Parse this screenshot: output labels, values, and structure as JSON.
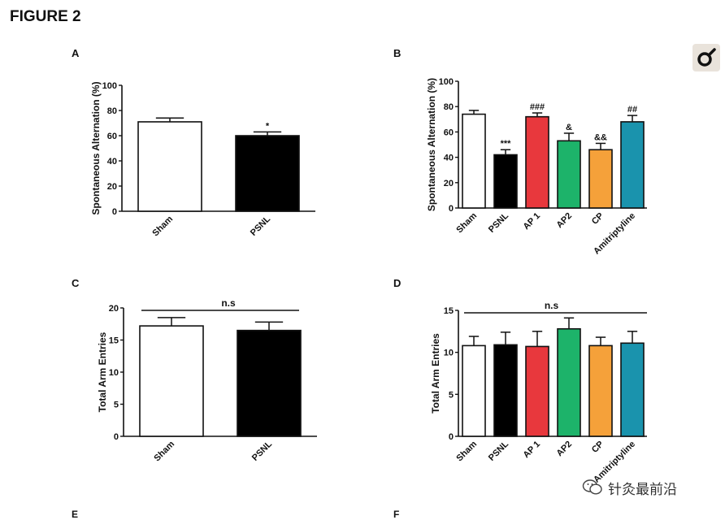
{
  "figure_title": "FIGURE 2",
  "watermark_text": "针灸最前沿",
  "bottom_letters": [
    "E",
    "F"
  ],
  "chart_data": [
    {
      "panel": "A",
      "type": "bar",
      "ylabel": "Spontaneous Alternation (%)",
      "ylim": [
        0,
        100
      ],
      "yticks": [
        0,
        20,
        40,
        60,
        80,
        100
      ],
      "categories": [
        "Sham",
        "PSNL"
      ],
      "values": [
        71,
        60
      ],
      "errors": [
        3,
        3
      ],
      "colors": [
        "#ffffff",
        "#000000"
      ],
      "annotations": [
        "",
        "*"
      ]
    },
    {
      "panel": "B",
      "type": "bar",
      "ylabel": "Spontaneous Alternation (%)",
      "ylim": [
        0,
        100
      ],
      "yticks": [
        0,
        20,
        40,
        60,
        80,
        100
      ],
      "categories": [
        "Sham",
        "PSNL",
        "AP 1",
        "AP2",
        "CP",
        "Amitriptyline"
      ],
      "values": [
        74,
        42,
        72,
        53,
        46,
        68
      ],
      "errors": [
        3,
        4,
        3,
        6,
        5,
        5
      ],
      "colors": [
        "#ffffff",
        "#000000",
        "#e8383d",
        "#1db36a",
        "#f5a13a",
        "#1a93ad"
      ],
      "annotations": [
        "",
        "***",
        "###",
        "&",
        "&&",
        "##"
      ]
    },
    {
      "panel": "C",
      "type": "bar",
      "ylabel": "Total Arm Entries",
      "ylim": [
        0,
        20
      ],
      "yticks": [
        0,
        5,
        10,
        15,
        20
      ],
      "categories": [
        "Sham",
        "PSNL"
      ],
      "values": [
        17.2,
        16.5
      ],
      "errors": [
        1.3,
        1.3
      ],
      "colors": [
        "#ffffff",
        "#000000"
      ],
      "annotations": [
        "",
        ""
      ],
      "bracket_label": "n.s"
    },
    {
      "panel": "D",
      "type": "bar",
      "ylabel": "Total Arm Entries",
      "ylim": [
        0,
        15
      ],
      "yticks": [
        0,
        5,
        10,
        15
      ],
      "categories": [
        "Sham",
        "PSNL",
        "AP 1",
        "AP2",
        "CP",
        "Amitriptyline"
      ],
      "values": [
        10.8,
        10.9,
        10.7,
        12.8,
        10.8,
        11.1
      ],
      "errors": [
        1.1,
        1.5,
        1.8,
        1.3,
        1.0,
        1.4
      ],
      "colors": [
        "#ffffff",
        "#000000",
        "#e8383d",
        "#1db36a",
        "#f5a13a",
        "#1a93ad"
      ],
      "annotations": [
        "",
        "",
        "",
        "",
        "",
        ""
      ],
      "bracket_label": "n.s"
    }
  ]
}
